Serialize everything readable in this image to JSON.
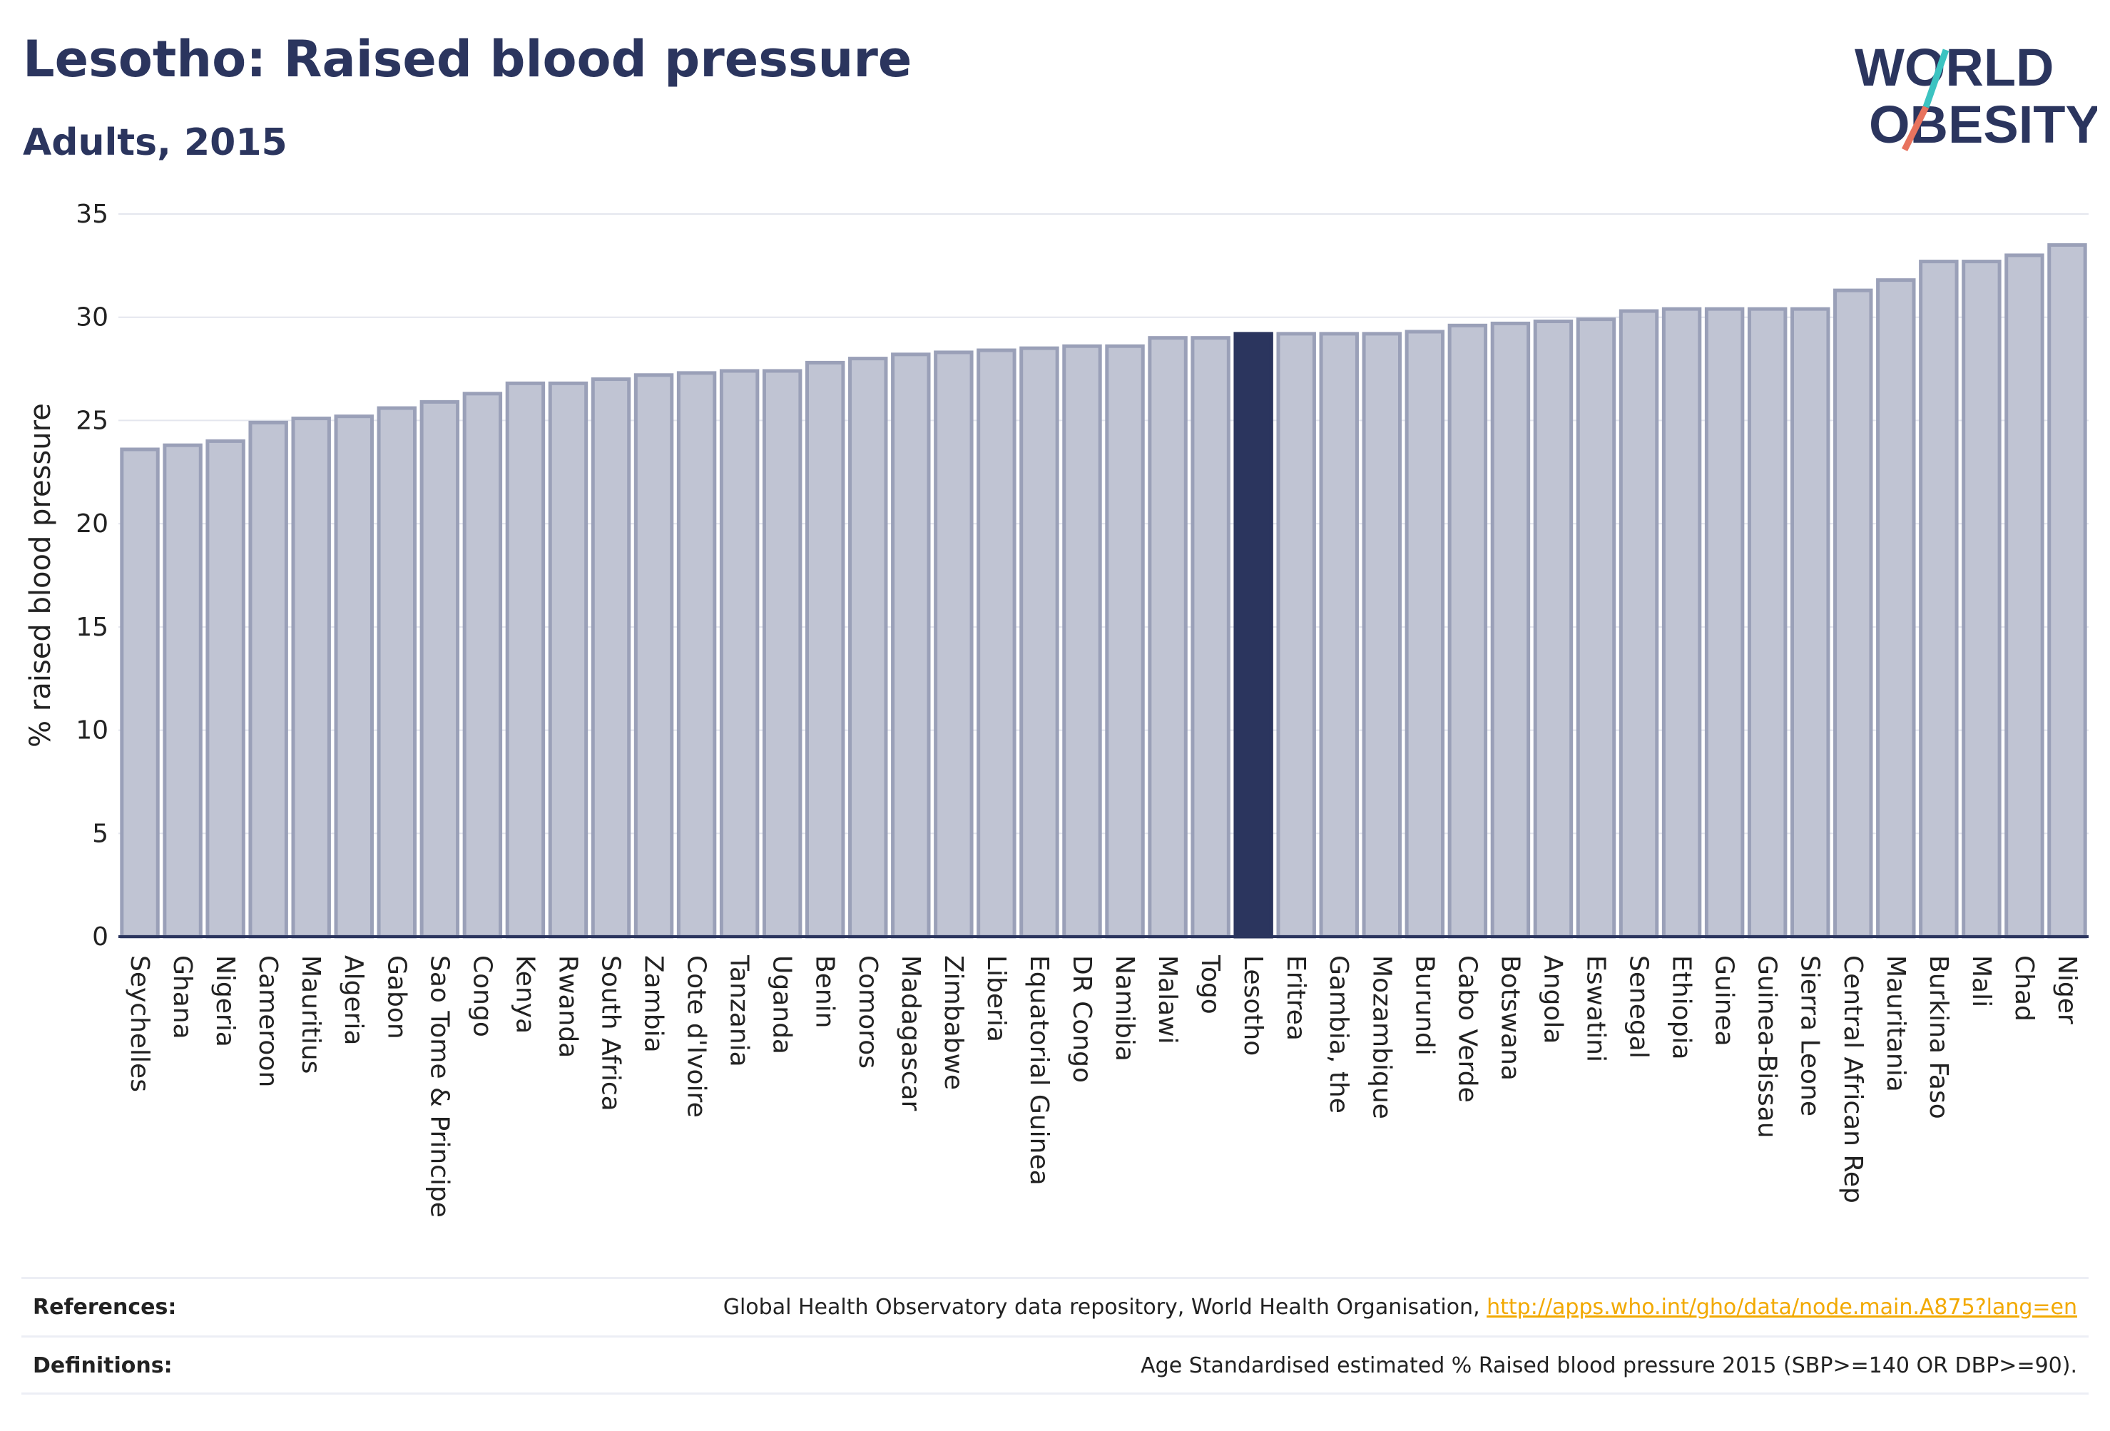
{
  "header": {
    "title": "Lesotho: Raised blood pressure",
    "subtitle": "Adults, 2015",
    "logo_text_1": "WORLD",
    "logo_text_2": "OBESITY"
  },
  "colors": {
    "highlight": "#2b355e",
    "bar_fill": "#c0c4d3",
    "bar_stroke": "#9aa0b8",
    "title": "#2b355e",
    "link": "#f2a900",
    "logo_teal": "#3cc3c1",
    "logo_coral": "#e8735e"
  },
  "chart_data": {
    "type": "bar",
    "ylabel": "% raised blood pressure",
    "xlabel": "",
    "ylim": [
      0,
      35
    ],
    "yticks": [
      "0",
      "5",
      "10",
      "15",
      "20",
      "25",
      "30",
      "35"
    ],
    "highlight": "Lesotho",
    "grid": true,
    "categories": [
      "Seychelles",
      "Ghana",
      "Nigeria",
      "Cameroon",
      "Mauritius",
      "Algeria",
      "Gabon",
      "Sao Tome & Principe",
      "Congo",
      "Kenya",
      "Rwanda",
      "South Africa",
      "Zambia",
      "Cote d'Ivoire",
      "Tanzania",
      "Uganda",
      "Benin",
      "Comoros",
      "Madagascar",
      "Zimbabwe",
      "Liberia",
      "Equatorial Guinea",
      "DR Congo",
      "Namibia",
      "Malawi",
      "Togo",
      "Lesotho",
      "Eritrea",
      "Gambia, the",
      "Mozambique",
      "Burundi",
      "Cabo Verde",
      "Botswana",
      "Angola",
      "Eswatini",
      "Senegal",
      "Ethiopia",
      "Guinea",
      "Guinea-Bissau",
      "Sierra Leone",
      "Central African Rep",
      "Mauritania",
      "Burkina Faso",
      "Mali",
      "Chad",
      "Niger"
    ],
    "values": [
      23.6,
      23.8,
      24.0,
      24.9,
      25.1,
      25.2,
      25.6,
      25.9,
      26.3,
      26.8,
      26.8,
      27.0,
      27.2,
      27.3,
      27.4,
      27.4,
      27.8,
      28.0,
      28.2,
      28.3,
      28.4,
      28.5,
      28.6,
      28.6,
      29.0,
      29.0,
      29.2,
      29.2,
      29.2,
      29.2,
      29.3,
      29.6,
      29.7,
      29.8,
      29.9,
      30.3,
      30.4,
      30.4,
      30.4,
      30.4,
      31.3,
      31.8,
      32.7,
      32.7,
      33.0,
      33.5
    ]
  },
  "footer": {
    "references_label": "References:",
    "references_text": "Global Health Observatory data repository, World Health Organisation, ",
    "references_link": "http://apps.who.int/gho/data/node.main.A875?lang=en",
    "definitions_label": "Definitions:",
    "definitions_text": "Age Standardised estimated % Raised blood pressure 2015 (SBP>=140 OR DBP>=90)."
  }
}
